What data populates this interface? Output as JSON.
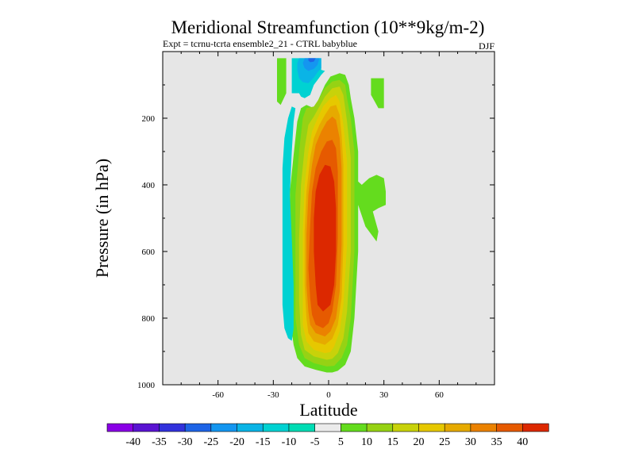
{
  "chart_data": {
    "type": "heatmap",
    "subtype": "filled-contour",
    "title": "Meridional Streamfunction (10**9kg/m-2)",
    "subtitle_left": "Expt = tcrnu-tcrta  ensemble2_21 - CTRL babyblue",
    "subtitle_right": "DJF",
    "xlabel": "Latitude",
    "ylabel": "Pressure (in hPa)",
    "xlim": [
      -90,
      90
    ],
    "ylim": [
      1000,
      0
    ],
    "x_ticks": [
      -60,
      -30,
      0,
      30,
      60
    ],
    "x_tick_labels": [
      "-60",
      "-30",
      "0",
      "30",
      "60"
    ],
    "y_ticks": [
      200,
      400,
      600,
      800,
      1000
    ],
    "y_tick_labels": [
      "200",
      "400",
      "600",
      "800",
      "1000"
    ],
    "missing_color": "#e6e6e6",
    "colorbar": {
      "labels": [
        "-40",
        "-35",
        "-30",
        "-25",
        "-20",
        "-15",
        "-10",
        "-5",
        "5",
        "10",
        "15",
        "20",
        "25",
        "30",
        "35",
        "40"
      ],
      "colors": [
        "#8a00e6",
        "#5a14d2",
        "#3232dc",
        "#1e64e6",
        "#1496f0",
        "#0ab4e6",
        "#00d2d2",
        "#00dcb4",
        "#ebebeb",
        "#64dc1e",
        "#96d214",
        "#c8d20a",
        "#e6c800",
        "#e6aa00",
        "#eb8200",
        "#e65a00",
        "#dc2800"
      ]
    },
    "contour_regions": [
      {
        "level_min": 5,
        "level_max": 10,
        "color": "#64dc1e",
        "boundary": [
          [
            -1,
            963
          ],
          [
            -7,
            955
          ],
          [
            -13,
            945
          ],
          [
            -17,
            920
          ],
          [
            -19,
            880
          ],
          [
            -21,
            800
          ],
          [
            -21,
            600
          ],
          [
            -21,
            420
          ],
          [
            -19,
            310
          ],
          [
            -17,
            210
          ],
          [
            -15,
            170
          ],
          [
            -12,
            160
          ],
          [
            -8,
            170
          ],
          [
            -6,
            150
          ],
          [
            -4,
            125
          ],
          [
            -2,
            100
          ],
          [
            1,
            75
          ],
          [
            6,
            65
          ],
          [
            9,
            70
          ],
          [
            11,
            100
          ],
          [
            12,
            140
          ],
          [
            14,
            200
          ],
          [
            16,
            300
          ],
          [
            16,
            390
          ],
          [
            18,
            400
          ],
          [
            20,
            390
          ],
          [
            22,
            380
          ],
          [
            26,
            370
          ],
          [
            30,
            380
          ],
          [
            31,
            420
          ],
          [
            31,
            460
          ],
          [
            27,
            470
          ],
          [
            24,
            480
          ],
          [
            27,
            540
          ],
          [
            26,
            570
          ],
          [
            20,
            525
          ],
          [
            16,
            460
          ],
          [
            16,
            600
          ],
          [
            14,
            800
          ],
          [
            12,
            900
          ],
          [
            9,
            940
          ],
          [
            5,
            958
          ],
          [
            2,
            963
          ]
        ]
      },
      {
        "level_min": 5,
        "level_max": 10,
        "color": "#64dc1e",
        "boundary": [
          [
            -28,
            20
          ],
          [
            -23,
            20
          ],
          [
            -23,
            125
          ],
          [
            -26,
            160
          ],
          [
            -28,
            150
          ]
        ]
      },
      {
        "level_min": 5,
        "level_max": 10,
        "color": "#64dc1e",
        "boundary": [
          [
            23,
            80
          ],
          [
            30,
            80
          ],
          [
            30,
            170
          ],
          [
            27,
            170
          ],
          [
            25,
            150
          ],
          [
            23,
            130
          ]
        ]
      },
      {
        "level_min": 10,
        "level_max": 15,
        "color": "#96d214",
        "boundary": [
          [
            -1,
            945
          ],
          [
            -8,
            935
          ],
          [
            -13,
            920
          ],
          [
            -16,
            880
          ],
          [
            -18,
            800
          ],
          [
            -18,
            600
          ],
          [
            -18,
            430
          ],
          [
            -16,
            300
          ],
          [
            -14,
            200
          ],
          [
            -12,
            170
          ],
          [
            -8,
            165
          ],
          [
            -5,
            140
          ],
          [
            -2,
            110
          ],
          [
            2,
            90
          ],
          [
            6,
            85
          ],
          [
            9,
            100
          ],
          [
            10,
            140
          ],
          [
            12,
            200
          ],
          [
            14,
            300
          ],
          [
            14,
            600
          ],
          [
            12,
            800
          ],
          [
            10,
            880
          ],
          [
            7,
            920
          ],
          [
            3,
            943
          ]
        ]
      },
      {
        "level_min": 15,
        "level_max": 20,
        "color": "#c8d20a",
        "boundary": [
          [
            -1,
            925
          ],
          [
            -8,
            915
          ],
          [
            -13,
            895
          ],
          [
            -15,
            850
          ],
          [
            -16,
            750
          ],
          [
            -16,
            560
          ],
          [
            -15,
            400
          ],
          [
            -13,
            290
          ],
          [
            -11,
            220
          ],
          [
            -8,
            195
          ],
          [
            -5,
            165
          ],
          [
            -2,
            135
          ],
          [
            2,
            110
          ],
          [
            6,
            105
          ],
          [
            8,
            130
          ],
          [
            10,
            210
          ],
          [
            12,
            320
          ],
          [
            12,
            600
          ],
          [
            10,
            780
          ],
          [
            8,
            860
          ],
          [
            5,
            905
          ],
          [
            2,
            922
          ]
        ]
      },
      {
        "level_min": 20,
        "level_max": 25,
        "color": "#e6c800",
        "boundary": [
          [
            -2,
            905
          ],
          [
            -8,
            895
          ],
          [
            -12,
            870
          ],
          [
            -14,
            820
          ],
          [
            -14,
            700
          ],
          [
            -14,
            540
          ],
          [
            -13,
            400
          ],
          [
            -11,
            300
          ],
          [
            -9,
            240
          ],
          [
            -6,
            200
          ],
          [
            -3,
            165
          ],
          [
            1,
            140
          ],
          [
            4,
            130
          ],
          [
            6,
            150
          ],
          [
            8,
            220
          ],
          [
            10,
            330
          ],
          [
            10,
            580
          ],
          [
            8,
            760
          ],
          [
            6,
            840
          ],
          [
            3,
            885
          ],
          [
            1,
            902
          ]
        ]
      },
      {
        "level_min": 25,
        "level_max": 30,
        "color": "#e6aa00",
        "boundary": [
          [
            -2,
            880
          ],
          [
            -8,
            870
          ],
          [
            -11,
            845
          ],
          [
            -12,
            800
          ],
          [
            -13,
            700
          ],
          [
            -13,
            540
          ],
          [
            -12,
            420
          ],
          [
            -10,
            320
          ],
          [
            -8,
            260
          ],
          [
            -5,
            220
          ],
          [
            -2,
            190
          ],
          [
            1,
            165
          ],
          [
            4,
            160
          ],
          [
            6,
            190
          ],
          [
            7,
            250
          ],
          [
            8,
            340
          ],
          [
            8,
            580
          ],
          [
            7,
            740
          ],
          [
            5,
            820
          ],
          [
            2,
            862
          ]
        ]
      },
      {
        "level_min": 30,
        "level_max": 35,
        "color": "#eb8200",
        "boundary": [
          [
            -2,
            855
          ],
          [
            -7,
            845
          ],
          [
            -10,
            820
          ],
          [
            -11,
            780
          ],
          [
            -12,
            700
          ],
          [
            -12,
            550
          ],
          [
            -11,
            430
          ],
          [
            -9,
            340
          ],
          [
            -7,
            280
          ],
          [
            -4,
            240
          ],
          [
            -1,
            210
          ],
          [
            2,
            195
          ],
          [
            4,
            205
          ],
          [
            6,
            260
          ],
          [
            7,
            350
          ],
          [
            7,
            580
          ],
          [
            6,
            720
          ],
          [
            4,
            800
          ],
          [
            1,
            840
          ]
        ]
      },
      {
        "level_min": 35,
        "level_max": 40,
        "color": "#e65a00",
        "boundary": [
          [
            -3,
            830
          ],
          [
            -7,
            820
          ],
          [
            -9,
            790
          ],
          [
            -10,
            740
          ],
          [
            -11,
            650
          ],
          [
            -10,
            520
          ],
          [
            -9,
            420
          ],
          [
            -7,
            350
          ],
          [
            -4,
            300
          ],
          [
            -1,
            270
          ],
          [
            2,
            265
          ],
          [
            4,
            290
          ],
          [
            5,
            360
          ],
          [
            5,
            560
          ],
          [
            4,
            700
          ],
          [
            2,
            780
          ],
          [
            0,
            815
          ]
        ]
      },
      {
        "level_min": 40,
        "level_max": 45,
        "color": "#dc2800",
        "boundary": [
          [
            -3,
            780
          ],
          [
            -6,
            760
          ],
          [
            -7,
            700
          ],
          [
            -8,
            600
          ],
          [
            -8,
            500
          ],
          [
            -7,
            420
          ],
          [
            -5,
            370
          ],
          [
            -2,
            340
          ],
          [
            1,
            345
          ],
          [
            3,
            390
          ],
          [
            4,
            470
          ],
          [
            4,
            600
          ],
          [
            3,
            700
          ],
          [
            1,
            760
          ]
        ]
      },
      {
        "level_min": -15,
        "level_max": -10,
        "color": "#00d2d2",
        "boundary": [
          [
            -20,
            20
          ],
          [
            -4,
            20
          ],
          [
            -4,
            55
          ],
          [
            -2,
            58
          ],
          [
            -4,
            70
          ],
          [
            -6,
            85
          ],
          [
            -8,
            100
          ],
          [
            -10,
            130
          ],
          [
            -13,
            140
          ],
          [
            -15,
            135
          ],
          [
            -16,
            125
          ],
          [
            -20,
            125
          ]
        ]
      },
      {
        "level_min": -20,
        "level_max": -15,
        "color": "#0ab4e6",
        "boundary": [
          [
            -16,
            20
          ],
          [
            -4,
            20
          ],
          [
            -4,
            50
          ],
          [
            -6,
            62
          ],
          [
            -8,
            78
          ],
          [
            -11,
            95
          ],
          [
            -14,
            92
          ],
          [
            -16,
            80
          ],
          [
            -17,
            55
          ],
          [
            -17,
            35
          ]
        ]
      },
      {
        "level_min": -25,
        "level_max": -20,
        "color": "#1496f0",
        "boundary": [
          [
            -13,
            20
          ],
          [
            -5,
            20
          ],
          [
            -6,
            40
          ],
          [
            -8,
            52
          ],
          [
            -11,
            58
          ],
          [
            -13,
            50
          ],
          [
            -14,
            35
          ]
        ]
      },
      {
        "level_min": -30,
        "level_max": -25,
        "color": "#1e64e6",
        "boundary": [
          [
            -11,
            20
          ],
          [
            -7,
            20
          ],
          [
            -8,
            30
          ],
          [
            -10,
            32
          ],
          [
            -11,
            27
          ]
        ]
      },
      {
        "level_min": -15,
        "level_max": -10,
        "color": "#00d2d2",
        "boundary": [
          [
            -20,
            165
          ],
          [
            -22,
            200
          ],
          [
            -24,
            260
          ],
          [
            -25,
            350
          ],
          [
            -25,
            500
          ],
          [
            -25,
            650
          ],
          [
            -25,
            760
          ],
          [
            -24,
            830
          ],
          [
            -22,
            860
          ],
          [
            -20,
            868
          ],
          [
            -19,
            830
          ],
          [
            -19,
            700
          ],
          [
            -20,
            560
          ],
          [
            -21,
            430
          ],
          [
            -20,
            300
          ],
          [
            -19,
            210
          ],
          [
            -18,
            170
          ]
        ]
      }
    ]
  }
}
